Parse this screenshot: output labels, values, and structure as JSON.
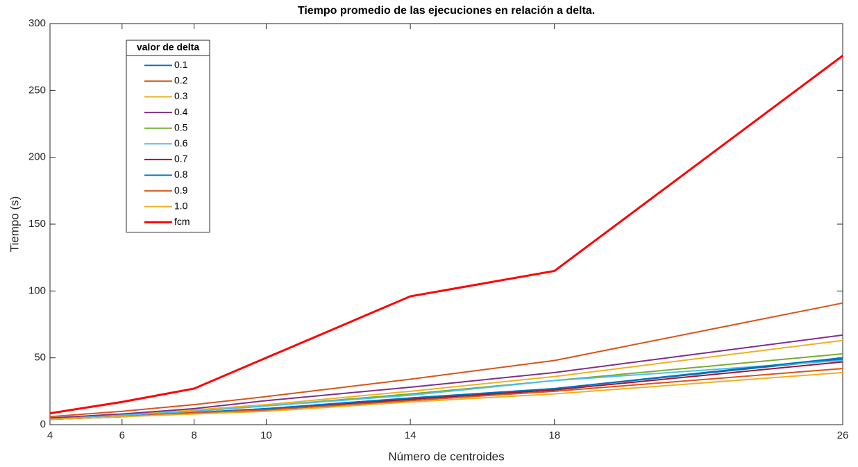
{
  "chart_data": {
    "type": "line",
    "title": "Tiempo promedio de las ejecuciones en relación a delta.",
    "x_label": "Número de centroides",
    "y_label": "Tiempo (s)",
    "legend_title": "valor de delta",
    "legend_position": "upper left",
    "x": [
      4,
      6,
      8,
      10,
      14,
      18,
      26
    ],
    "xlim": [
      4,
      26
    ],
    "xticks": [
      4,
      6,
      8,
      10,
      14,
      18,
      26
    ],
    "ylim": [
      0,
      300
    ],
    "yticks": [
      0,
      50,
      100,
      150,
      200,
      250,
      300
    ],
    "series": [
      {
        "name": "0.1",
        "color": "#0072BD",
        "values": [
          4,
          6,
          9,
          12,
          19,
          27,
          49
        ]
      },
      {
        "name": "0.2",
        "color": "#D95319",
        "values": [
          6,
          10,
          15,
          21,
          34,
          48,
          91
        ]
      },
      {
        "name": "0.3",
        "color": "#EDB120",
        "values": [
          5,
          7,
          11,
          15,
          25,
          36,
          63
        ]
      },
      {
        "name": "0.4",
        "color": "#7E2F8E",
        "values": [
          5,
          8,
          12,
          18,
          28,
          39,
          67
        ]
      },
      {
        "name": "0.5",
        "color": "#77AC30",
        "values": [
          4,
          7,
          10,
          14,
          23,
          33,
          53
        ]
      },
      {
        "name": "0.6",
        "color": "#4DBEEE",
        "values": [
          4,
          7,
          10,
          14,
          22,
          33,
          48
        ]
      },
      {
        "name": "0.7",
        "color": "#A2142F",
        "values": [
          4,
          6,
          9,
          11,
          19,
          26,
          47
        ]
      },
      {
        "name": "0.8",
        "color": "#0072BD",
        "values": [
          4,
          6,
          9,
          12,
          20,
          27,
          50
        ]
      },
      {
        "name": "0.9",
        "color": "#D95319",
        "values": [
          4,
          6,
          9,
          11,
          18,
          25,
          42
        ]
      },
      {
        "name": "1.0",
        "color": "#EDB120",
        "values": [
          4,
          6,
          8,
          10,
          17,
          23,
          39
        ]
      },
      {
        "name": "fcm",
        "color": "#FF0000",
        "values": [
          8.5,
          17,
          27,
          50,
          96,
          115,
          276
        ],
        "width": 3
      }
    ]
  }
}
